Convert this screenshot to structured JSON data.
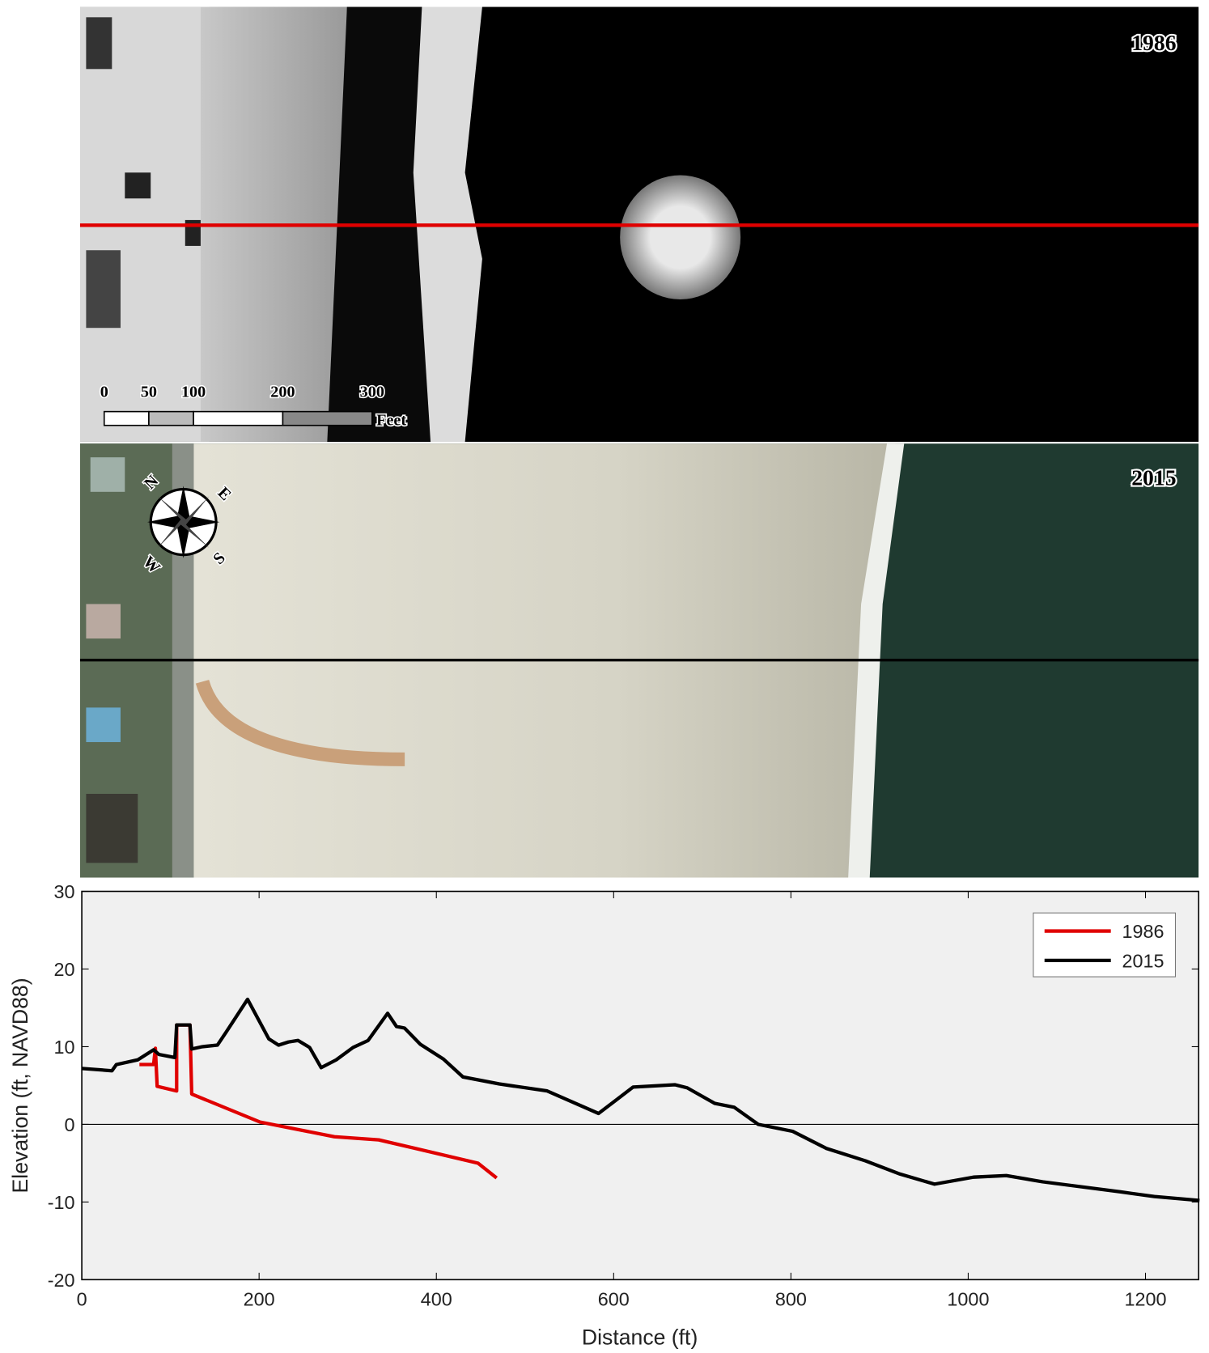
{
  "panels": [
    {
      "label": "1986"
    },
    {
      "label": "2015"
    }
  ],
  "scale_bar": {
    "ticks": [
      0,
      50,
      100,
      200,
      300
    ],
    "unit": "Feet"
  },
  "compass": {
    "n": "N",
    "e": "E",
    "s": "S",
    "w": "W"
  },
  "chart_data": {
    "type": "line",
    "xlabel": "Distance (ft)",
    "ylabel": "Elevation (ft, NAVD88)",
    "xlim": [
      0,
      1260
    ],
    "ylim": [
      -20,
      30
    ],
    "xticks": [
      0,
      200,
      400,
      600,
      800,
      1000,
      1200
    ],
    "yticks": [
      -20,
      -10,
      0,
      10,
      20,
      30
    ],
    "zero_line": true,
    "legend": "upper-right",
    "series": [
      {
        "name": "1986",
        "color": "#e00000",
        "x": [
          65,
          81,
          83,
          85,
          107,
          107,
          122,
          124,
          201,
          285,
          335,
          447,
          468
        ],
        "values": [
          7.7,
          7.7,
          9.8,
          4.9,
          4.3,
          12.8,
          12.8,
          3.9,
          0.3,
          -1.6,
          -2,
          -5,
          -6.9
        ]
      },
      {
        "name": "2015",
        "color": "#000000",
        "x": [
          0,
          34,
          39,
          63,
          81,
          87,
          105,
          107,
          122,
          124,
          136,
          153,
          163,
          187,
          211,
          222,
          233,
          244,
          257,
          270,
          287,
          306,
          323,
          345,
          355,
          364,
          382,
          408,
          430,
          471,
          525,
          583,
          622,
          669,
          683,
          714,
          736,
          763,
          802,
          840,
          884,
          923,
          962,
          1006,
          1043,
          1084,
          1172,
          1210,
          1261
        ],
        "values": [
          7.2,
          6.9,
          7.7,
          8.3,
          9.6,
          9.0,
          8.6,
          12.8,
          12.8,
          9.7,
          10,
          10.2,
          11.9,
          16.1,
          11,
          10.2,
          10.6,
          10.8,
          9.9,
          7.3,
          8.3,
          9.9,
          10.8,
          14.3,
          12.6,
          12.4,
          10.3,
          8.4,
          6.1,
          5.2,
          4.3,
          1.4,
          4.8,
          5.1,
          4.7,
          2.7,
          2.2,
          0,
          -0.9,
          -3.1,
          -4.7,
          -6.4,
          -7.7,
          -6.8,
          -6.6,
          -7.4,
          -8.7,
          -9.3,
          -9.8
        ]
      }
    ]
  }
}
